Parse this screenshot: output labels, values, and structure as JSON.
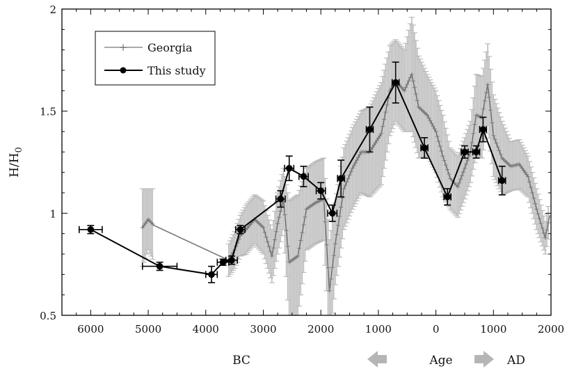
{
  "chart_data": {
    "type": "line",
    "xlabel": "Age",
    "xlabel_left": "BC",
    "xlabel_right": "AD",
    "ylabel_base": "H/H",
    "ylabel_sub": "0",
    "xlim": [
      6500,
      -2000
    ],
    "ylim": [
      0.5,
      2
    ],
    "x_ticks": [
      6000,
      5000,
      4000,
      3000,
      2000,
      1000,
      0,
      -1000,
      -2000
    ],
    "x_tick_labels": [
      "6000",
      "5000",
      "4000",
      "3000",
      "2000",
      "1000",
      "0",
      "1000",
      "2000"
    ],
    "y_ticks": [
      0.5,
      1,
      1.5,
      2
    ],
    "y_tick_labels": [
      "0.5",
      "1",
      "1.5",
      "2"
    ],
    "legend_position": "top-left",
    "series": [
      {
        "name": "Georgia",
        "color": "#777777",
        "errorbar_color": "#bbbbbb",
        "marker": "plus",
        "points": [
          {
            "x": 5100,
            "y": 0.93,
            "err": 0.19
          },
          {
            "x": 5000,
            "y": 0.97,
            "err": 0.15
          },
          {
            "x": 4900,
            "y": 0.94,
            "err": 0.18
          },
          {
            "x": 3600,
            "y": 0.77,
            "err": 0.08
          },
          {
            "x": 3500,
            "y": 0.82,
            "err": 0.09
          },
          {
            "x": 3400,
            "y": 0.89,
            "err": 0.1
          },
          {
            "x": 3300,
            "y": 0.92,
            "err": 0.12
          },
          {
            "x": 3150,
            "y": 0.97,
            "err": 0.12
          },
          {
            "x": 3000,
            "y": 0.93,
            "err": 0.13
          },
          {
            "x": 2850,
            "y": 0.79,
            "err": 0.13
          },
          {
            "x": 2750,
            "y": 0.95,
            "err": 0.15
          },
          {
            "x": 2650,
            "y": 1.07,
            "err": 0.15
          },
          {
            "x": 2550,
            "y": 0.76,
            "err": 0.3
          },
          {
            "x": 2400,
            "y": 0.79,
            "err": 0.3
          },
          {
            "x": 2250,
            "y": 1.02,
            "err": 0.2
          },
          {
            "x": 2100,
            "y": 1.05,
            "err": 0.2
          },
          {
            "x": 1950,
            "y": 1.07,
            "err": 0.2
          },
          {
            "x": 1850,
            "y": 0.62,
            "err": 0.25
          },
          {
            "x": 1750,
            "y": 0.85,
            "err": 0.2
          },
          {
            "x": 1600,
            "y": 1.12,
            "err": 0.2
          },
          {
            "x": 1450,
            "y": 1.22,
            "err": 0.2
          },
          {
            "x": 1300,
            "y": 1.3,
            "err": 0.2
          },
          {
            "x": 1150,
            "y": 1.3,
            "err": 0.22
          },
          {
            "x": 950,
            "y": 1.39,
            "err": 0.25
          },
          {
            "x": 800,
            "y": 1.6,
            "err": 0.22
          },
          {
            "x": 700,
            "y": 1.65,
            "err": 0.2
          },
          {
            "x": 550,
            "y": 1.6,
            "err": 0.2
          },
          {
            "x": 420,
            "y": 1.68,
            "err": 0.28
          },
          {
            "x": 300,
            "y": 1.52,
            "err": 0.25
          },
          {
            "x": 150,
            "y": 1.48,
            "err": 0.2
          },
          {
            "x": 0,
            "y": 1.4,
            "err": 0.2
          },
          {
            "x": -120,
            "y": 1.28,
            "err": 0.2
          },
          {
            "x": -250,
            "y": 1.17,
            "err": 0.15
          },
          {
            "x": -380,
            "y": 1.13,
            "err": 0.15
          },
          {
            "x": -500,
            "y": 1.22,
            "err": 0.15
          },
          {
            "x": -600,
            "y": 1.3,
            "err": 0.15
          },
          {
            "x": -700,
            "y": 1.48,
            "err": 0.2
          },
          {
            "x": -800,
            "y": 1.47,
            "err": 0.2
          },
          {
            "x": -900,
            "y": 1.63,
            "err": 0.2
          },
          {
            "x": -1000,
            "y": 1.38,
            "err": 0.2
          },
          {
            "x": -1150,
            "y": 1.27,
            "err": 0.18
          },
          {
            "x": -1300,
            "y": 1.23,
            "err": 0.12
          },
          {
            "x": -1450,
            "y": 1.24,
            "err": 0.12
          },
          {
            "x": -1600,
            "y": 1.18,
            "err": 0.1
          },
          {
            "x": -1750,
            "y": 1.02,
            "err": 0.1
          },
          {
            "x": -1900,
            "y": 0.88,
            "err": 0.08
          },
          {
            "x": -1980,
            "y": 0.99,
            "err": 0.08
          }
        ]
      },
      {
        "name": "This study",
        "color": "#000000",
        "marker": "circle",
        "points": [
          {
            "x": 6000,
            "y": 0.92,
            "yerr": 0.02,
            "xerr": 200
          },
          {
            "x": 4800,
            "y": 0.74,
            "yerr": 0.02,
            "xerr": 300
          },
          {
            "x": 3900,
            "y": 0.7,
            "yerr": 0.04,
            "xerr": 100
          },
          {
            "x": 3700,
            "y": 0.76,
            "yerr": 0.015,
            "xerr": 100
          },
          {
            "x": 3550,
            "y": 0.77,
            "yerr": 0.02,
            "xerr": 100
          },
          {
            "x": 3400,
            "y": 0.92,
            "yerr": 0.02,
            "xerr": 80
          },
          {
            "x": 2700,
            "y": 1.07,
            "yerr": 0.04,
            "xerr": 80
          },
          {
            "x": 2550,
            "y": 1.22,
            "yerr": 0.06,
            "xerr": 80
          },
          {
            "x": 2300,
            "y": 1.18,
            "yerr": 0.05,
            "xerr": 80
          },
          {
            "x": 2000,
            "y": 1.11,
            "yerr": 0.04,
            "xerr": 80
          },
          {
            "x": 1800,
            "y": 1.0,
            "yerr": 0.04,
            "xerr": 80
          },
          {
            "x": 1650,
            "y": 1.17,
            "yerr": 0.09,
            "xerr": 60
          },
          {
            "x": 1150,
            "y": 1.41,
            "yerr": 0.11,
            "xerr": 60
          },
          {
            "x": 700,
            "y": 1.64,
            "yerr": 0.1,
            "xerr": 60
          },
          {
            "x": 200,
            "y": 1.32,
            "yerr": 0.05,
            "xerr": 60
          },
          {
            "x": -200,
            "y": 1.08,
            "yerr": 0.04,
            "xerr": 60
          },
          {
            "x": -500,
            "y": 1.3,
            "yerr": 0.03,
            "xerr": 60
          },
          {
            "x": -700,
            "y": 1.3,
            "yerr": 0.03,
            "xerr": 60
          },
          {
            "x": -820,
            "y": 1.41,
            "yerr": 0.06,
            "xerr": 60
          },
          {
            "x": -1150,
            "y": 1.16,
            "yerr": 0.07,
            "xerr": 60
          }
        ]
      }
    ]
  }
}
